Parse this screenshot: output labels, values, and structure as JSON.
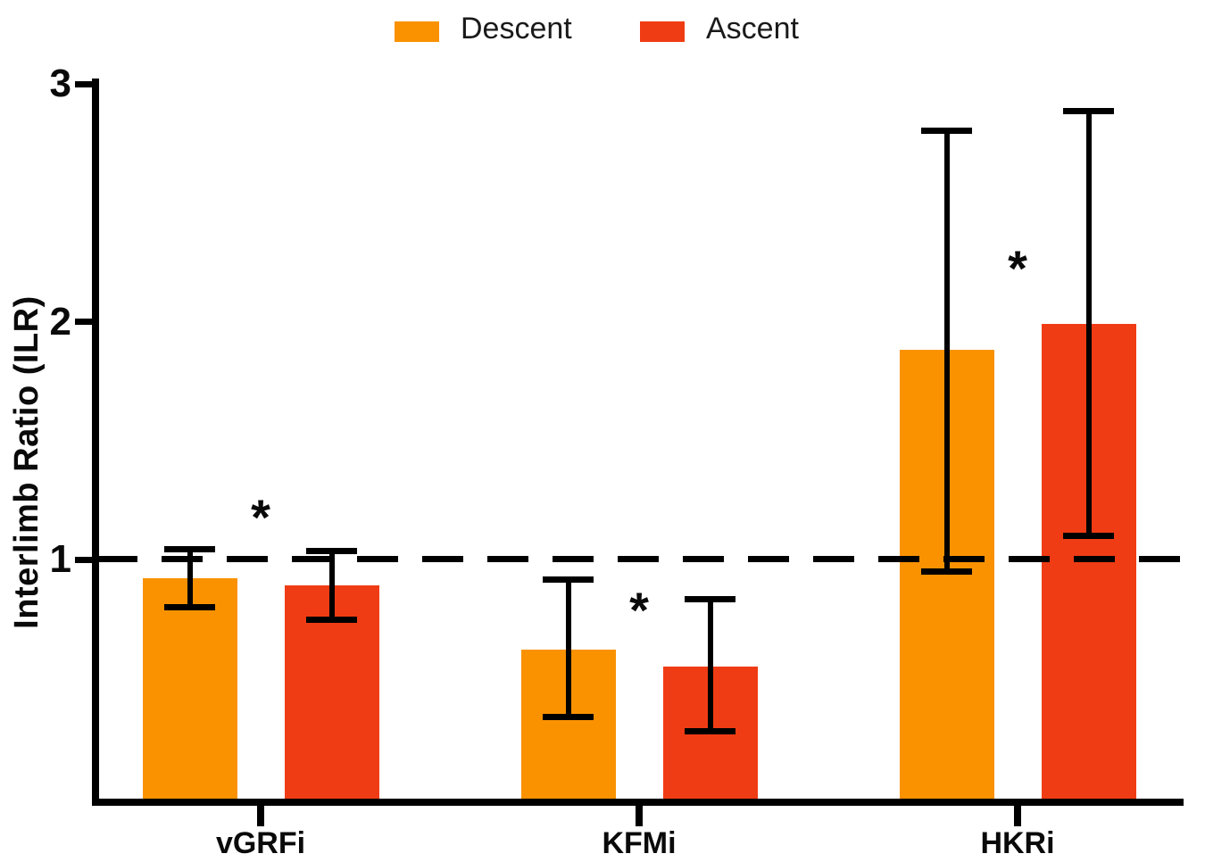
{
  "legend": {
    "items": [
      {
        "label": "Descent",
        "color": "#FA9200"
      },
      {
        "label": "Ascent",
        "color": "#F03C14"
      }
    ]
  },
  "chart_data": {
    "type": "bar",
    "ylabel": "Interlimb Ratio (ILR)",
    "xlabel": "",
    "categories": [
      "vGRFi",
      "KFMi",
      "HKRi"
    ],
    "ylim": [
      0,
      3
    ],
    "yticks": [
      1,
      2,
      3
    ],
    "grid": false,
    "legend_position": "top",
    "axis_color": "#000000",
    "reference_line": {
      "y": 1,
      "style": "dashed",
      "color": "#000000"
    },
    "series": [
      {
        "name": "Descent",
        "color": "#FA9200",
        "values": [
          0.92,
          0.62,
          1.88
        ],
        "error_low": [
          0.8,
          0.34,
          0.95
        ],
        "error_high": [
          1.05,
          0.92,
          2.81
        ]
      },
      {
        "name": "Ascent",
        "color": "#F03C14",
        "values": [
          0.89,
          0.55,
          1.99
        ],
        "error_low": [
          0.75,
          0.28,
          1.1
        ],
        "error_high": [
          1.04,
          0.84,
          2.89
        ]
      }
    ],
    "significance_markers": [
      {
        "category": "vGRFi",
        "symbol": "*",
        "y": 1.22
      },
      {
        "category": "KFMi",
        "symbol": "*",
        "y": 0.83
      },
      {
        "category": "HKRi",
        "symbol": "*",
        "y": 2.27
      }
    ]
  }
}
